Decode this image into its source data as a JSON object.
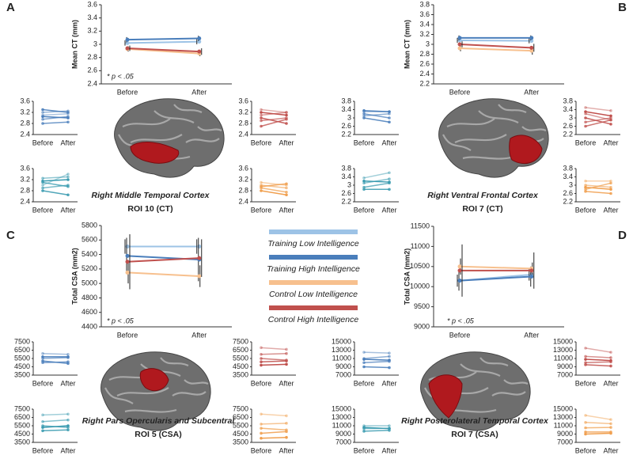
{
  "legend": [
    {
      "name": "Training Low Intelligence",
      "color": "#9dc3e6"
    },
    {
      "name": "Training High Intelligence",
      "color": "#4a7ebb"
    },
    {
      "name": "Control Low Intelligence",
      "color": "#f7c08e"
    },
    {
      "name": "Control High Intelligence",
      "color": "#c0504d"
    }
  ],
  "panels": [
    {
      "label": "A",
      "region": "Right Middle Temporal Cortex",
      "roi": "ROI 10 (CT)",
      "note": "* p < .05"
    },
    {
      "label": "B",
      "region": "Right Ventral Frontal Cortex",
      "roi": "ROI 7 (CT)"
    },
    {
      "label": "C",
      "region": "Right Pars Opercularis and Subcentral",
      "roi": "ROI 5 (CSA)",
      "note": "* p < .05"
    },
    {
      "label": "D",
      "region": "Right Posterolateral Temporal Cortex",
      "roi": "ROI 7 (CSA)",
      "note": "* p < .05"
    }
  ],
  "chart_data": [
    {
      "type": "line",
      "y_label": "Mean CT (mm)",
      "categories": [
        "Before",
        "After"
      ],
      "ylim": [
        2.4,
        3.6
      ],
      "yticks": [
        2.4,
        2.6,
        2.8,
        3,
        3.2,
        3.4,
        3.6
      ],
      "series": [
        {
          "name": "Training Low Intelligence",
          "color": "#9dc3e6",
          "values": [
            3.02,
            3.04
          ],
          "errors": [
            0.04,
            0.04
          ]
        },
        {
          "name": "Training High Intelligence",
          "color": "#4a7ebb",
          "values": [
            3.07,
            3.09
          ],
          "errors": [
            0.04,
            0.04
          ]
        },
        {
          "name": "Control Low Intelligence",
          "color": "#f7c08e",
          "values": [
            2.93,
            2.86
          ],
          "errors": [
            0.04,
            0.04
          ]
        },
        {
          "name": "Control High Intelligence",
          "color": "#c0504d",
          "values": [
            2.94,
            2.89
          ],
          "errors": [
            0.04,
            0.05
          ]
        }
      ]
    },
    {
      "type": "spaghetti",
      "categories": [
        "Before",
        "After"
      ],
      "ylim": [
        2.4,
        3.6
      ],
      "yticks": [
        2.4,
        2.8,
        3.2,
        3.6
      ],
      "color": "#4a7ebb",
      "series": [
        {
          "values": [
            3.1,
            3.15
          ]
        },
        {
          "values": [
            3.2,
            3.25
          ]
        },
        {
          "values": [
            2.95,
            3.05
          ]
        },
        {
          "values": [
            2.8,
            2.85
          ]
        },
        {
          "values": [
            3.3,
            3.2
          ]
        },
        {
          "values": [
            3.05,
            3.0
          ]
        }
      ]
    },
    {
      "type": "spaghetti",
      "categories": [
        "Before",
        "After"
      ],
      "ylim": [
        2.4,
        3.6
      ],
      "yticks": [
        2.4,
        2.8,
        3.2,
        3.6
      ],
      "color": "#3a9bb0",
      "series": [
        {
          "values": [
            3.0,
            3.4
          ]
        },
        {
          "values": [
            3.25,
            3.3
          ]
        },
        {
          "values": [
            2.9,
            3.0
          ]
        },
        {
          "values": [
            3.1,
            2.95
          ]
        },
        {
          "values": [
            2.8,
            2.65
          ]
        },
        {
          "values": [
            3.15,
            3.2
          ]
        }
      ]
    },
    {
      "type": "spaghetti",
      "categories": [
        "Before",
        "After"
      ],
      "ylim": [
        2.4,
        3.6
      ],
      "yticks": [
        2.4,
        2.8,
        3.2,
        3.6
      ],
      "color": "#c0504d",
      "series": [
        {
          "values": [
            3.3,
            3.2
          ]
        },
        {
          "values": [
            3.1,
            3.2
          ]
        },
        {
          "values": [
            2.9,
            3.0
          ]
        },
        {
          "values": [
            2.7,
            2.95
          ]
        },
        {
          "values": [
            3.0,
            2.8
          ]
        },
        {
          "values": [
            3.2,
            3.1
          ]
        }
      ]
    },
    {
      "type": "spaghetti",
      "categories": [
        "Before",
        "After"
      ],
      "ylim": [
        2.4,
        3.6
      ],
      "yticks": [
        2.4,
        2.8,
        3.2,
        3.6
      ],
      "color": "#f0a050",
      "series": [
        {
          "values": [
            3.1,
            3.0
          ]
        },
        {
          "values": [
            3.0,
            2.9
          ]
        },
        {
          "values": [
            2.9,
            2.75
          ]
        },
        {
          "values": [
            2.95,
            3.05
          ]
        },
        {
          "values": [
            2.8,
            2.65
          ]
        }
      ]
    },
    {
      "type": "line",
      "y_label": "Mean CT (mm)",
      "categories": [
        "Before",
        "After"
      ],
      "ylim": [
        2.2,
        3.8
      ],
      "yticks": [
        2.2,
        2.4,
        2.6,
        2.8,
        3,
        3.2,
        3.4,
        3.6,
        3.8
      ],
      "series": [
        {
          "name": "Training Low Intelligence",
          "color": "#9dc3e6",
          "values": [
            3.08,
            3.07
          ],
          "errors": [
            0.05,
            0.05
          ]
        },
        {
          "name": "Training High Intelligence",
          "color": "#4a7ebb",
          "values": [
            3.13,
            3.13
          ],
          "errors": [
            0.05,
            0.05
          ]
        },
        {
          "name": "Control Low Intelligence",
          "color": "#f7c08e",
          "values": [
            2.92,
            2.87
          ],
          "errors": [
            0.06,
            0.08
          ]
        },
        {
          "name": "Control High Intelligence",
          "color": "#c0504d",
          "values": [
            3.0,
            2.93
          ],
          "errors": [
            0.06,
            0.08
          ]
        }
      ]
    },
    {
      "type": "spaghetti",
      "categories": [
        "Before",
        "After"
      ],
      "ylim": [
        2.2,
        3.8
      ],
      "yticks": [
        2.2,
        2.6,
        3,
        3.4,
        3.8
      ],
      "color": "#4a7ebb",
      "series": [
        {
          "values": [
            3.3,
            3.3
          ]
        },
        {
          "values": [
            3.1,
            3.2
          ]
        },
        {
          "values": [
            3.2,
            3.0
          ]
        },
        {
          "values": [
            3.0,
            2.8
          ]
        },
        {
          "values": [
            3.35,
            3.3
          ]
        }
      ]
    },
    {
      "type": "spaghetti",
      "categories": [
        "Before",
        "After"
      ],
      "ylim": [
        2.2,
        3.8
      ],
      "yticks": [
        2.2,
        2.6,
        3,
        3.4,
        3.8
      ],
      "color": "#3a9bb0",
      "series": [
        {
          "values": [
            3.35,
            3.6
          ]
        },
        {
          "values": [
            3.1,
            3.3
          ]
        },
        {
          "values": [
            2.9,
            3.1
          ]
        },
        {
          "values": [
            2.8,
            2.8
          ]
        },
        {
          "values": [
            3.2,
            3.15
          ]
        }
      ]
    },
    {
      "type": "spaghetti",
      "categories": [
        "Before",
        "After"
      ],
      "ylim": [
        2.2,
        3.8
      ],
      "yticks": [
        2.2,
        2.6,
        3,
        3.4,
        3.8
      ],
      "color": "#c0504d",
      "series": [
        {
          "values": [
            3.5,
            3.35
          ]
        },
        {
          "values": [
            3.2,
            2.9
          ]
        },
        {
          "values": [
            2.8,
            3.0
          ]
        },
        {
          "values": [
            2.6,
            2.9
          ]
        },
        {
          "values": [
            3.0,
            2.7
          ]
        },
        {
          "values": [
            3.3,
            3.1
          ]
        }
      ]
    },
    {
      "type": "spaghetti",
      "categories": [
        "Before",
        "After"
      ],
      "ylim": [
        2.2,
        3.8
      ],
      "yticks": [
        2.2,
        2.6,
        3,
        3.4,
        3.8
      ],
      "color": "#f0a050",
      "series": [
        {
          "values": [
            3.2,
            3.2
          ]
        },
        {
          "values": [
            3.0,
            2.9
          ]
        },
        {
          "values": [
            2.8,
            3.1
          ]
        },
        {
          "values": [
            2.7,
            2.6
          ]
        },
        {
          "values": [
            2.9,
            2.8
          ]
        }
      ]
    },
    {
      "type": "line",
      "y_label": "Total CSA (mm2)",
      "categories": [
        "Before",
        "After"
      ],
      "ylim": [
        4400,
        5800
      ],
      "yticks": [
        4400,
        4600,
        4800,
        5000,
        5200,
        5400,
        5600,
        5800
      ],
      "series": [
        {
          "name": "Training Low Intelligence",
          "color": "#9dc3e6",
          "values": [
            5510,
            5510
          ],
          "errors": [
            100,
            100
          ]
        },
        {
          "name": "Training High Intelligence",
          "color": "#4a7ebb",
          "values": [
            5380,
            5330
          ],
          "errors": [
            250,
            300
          ]
        },
        {
          "name": "Control Low Intelligence",
          "color": "#f7c08e",
          "values": [
            5150,
            5100
          ],
          "errors": [
            150,
            150
          ]
        },
        {
          "name": "Control High Intelligence",
          "color": "#c0504d",
          "values": [
            5300,
            5350
          ],
          "errors": [
            380,
            260
          ]
        }
      ]
    },
    {
      "type": "spaghetti",
      "categories": [
        "Before",
        "After"
      ],
      "ylim": [
        3500,
        7500
      ],
      "yticks": [
        3500,
        4500,
        5500,
        6500,
        7500
      ],
      "color": "#4a7ebb",
      "series": [
        {
          "values": [
            6100,
            6000
          ]
        },
        {
          "values": [
            5500,
            5600
          ]
        },
        {
          "values": [
            5000,
            5100
          ]
        },
        {
          "values": [
            5200,
            4900
          ]
        },
        {
          "values": [
            5700,
            5700
          ]
        }
      ]
    },
    {
      "type": "spaghetti",
      "categories": [
        "Before",
        "After"
      ],
      "ylim": [
        3500,
        7500
      ],
      "yticks": [
        3500,
        4500,
        5500,
        6500,
        7500
      ],
      "color": "#3a9bb0",
      "series": [
        {
          "values": [
            6800,
            6900
          ]
        },
        {
          "values": [
            6000,
            6200
          ]
        },
        {
          "values": [
            5500,
            5300
          ]
        },
        {
          "values": [
            4900,
            5000
          ]
        },
        {
          "values": [
            5300,
            5500
          ]
        }
      ]
    },
    {
      "type": "spaghetti",
      "categories": [
        "Before",
        "After"
      ],
      "ylim": [
        3500,
        7500
      ],
      "yticks": [
        3500,
        4500,
        5500,
        6500,
        7500
      ],
      "color": "#c0504d",
      "series": [
        {
          "values": [
            6800,
            6600
          ]
        },
        {
          "values": [
            6000,
            6100
          ]
        },
        {
          "values": [
            5500,
            5300
          ]
        },
        {
          "values": [
            5100,
            5200
          ]
        },
        {
          "values": [
            4700,
            4800
          ]
        }
      ]
    },
    {
      "type": "spaghetti",
      "categories": [
        "Before",
        "After"
      ],
      "ylim": [
        3500,
        7500
      ],
      "yticks": [
        3500,
        4500,
        5500,
        6500,
        7500
      ],
      "color": "#f0a050",
      "series": [
        {
          "values": [
            6900,
            6700
          ]
        },
        {
          "values": [
            5700,
            5800
          ]
        },
        {
          "values": [
            5200,
            5000
          ]
        },
        {
          "values": [
            4600,
            4800
          ]
        },
        {
          "values": [
            4000,
            4100
          ]
        }
      ]
    },
    {
      "type": "line",
      "y_label": "Total CSA (mm2)",
      "categories": [
        "Before",
        "After"
      ],
      "ylim": [
        9000,
        11500
      ],
      "yticks": [
        9000,
        9500,
        10000,
        10500,
        11000,
        11500
      ],
      "series": [
        {
          "name": "Training Low Intelligence",
          "color": "#9dc3e6",
          "values": [
            10150,
            10300
          ],
          "errors": [
            150,
            150
          ]
        },
        {
          "name": "Training High Intelligence",
          "color": "#4a7ebb",
          "values": [
            10150,
            10250
          ],
          "errors": [
            250,
            250
          ]
        },
        {
          "name": "Control Low Intelligence",
          "color": "#f7c08e",
          "values": [
            10500,
            10450
          ],
          "errors": [
            200,
            150
          ]
        },
        {
          "name": "Control High Intelligence",
          "color": "#c0504d",
          "values": [
            10400,
            10400
          ],
          "errors": [
            650,
            450
          ]
        }
      ]
    },
    {
      "type": "spaghetti",
      "categories": [
        "Before",
        "After"
      ],
      "ylim": [
        7000,
        15000
      ],
      "yticks": [
        7000,
        9000,
        11000,
        13000,
        15000
      ],
      "color": "#4a7ebb",
      "series": [
        {
          "values": [
            12500,
            12300
          ]
        },
        {
          "values": [
            11000,
            11500
          ]
        },
        {
          "values": [
            10000,
            10300
          ]
        },
        {
          "values": [
            9000,
            8800
          ]
        },
        {
          "values": [
            10800,
            10600
          ]
        }
      ]
    },
    {
      "type": "spaghetti",
      "categories": [
        "Before",
        "After"
      ],
      "ylim": [
        7000,
        15000
      ],
      "yticks": [
        7000,
        9000,
        11000,
        13000,
        15000
      ],
      "color": "#3a9bb0",
      "series": [
        {
          "values": [
            11000,
            11000
          ]
        },
        {
          "values": [
            10300,
            10400
          ]
        },
        {
          "values": [
            9700,
            9900
          ]
        },
        {
          "values": [
            10600,
            10300
          ]
        }
      ]
    },
    {
      "type": "spaghetti",
      "categories": [
        "Before",
        "After"
      ],
      "ylim": [
        7000,
        15000
      ],
      "yticks": [
        7000,
        9000,
        11000,
        13000,
        15000
      ],
      "color": "#c0504d",
      "series": [
        {
          "values": [
            13500,
            12500
          ]
        },
        {
          "values": [
            11500,
            11200
          ]
        },
        {
          "values": [
            10000,
            10200
          ]
        },
        {
          "values": [
            9500,
            9200
          ]
        },
        {
          "values": [
            10800,
            10500
          ]
        }
      ]
    },
    {
      "type": "spaghetti",
      "categories": [
        "Before",
        "After"
      ],
      "ylim": [
        7000,
        15000
      ],
      "yticks": [
        7000,
        9000,
        11000,
        13000,
        15000
      ],
      "color": "#f0a050",
      "series": [
        {
          "values": [
            13500,
            12500
          ]
        },
        {
          "values": [
            11800,
            11500
          ]
        },
        {
          "values": [
            10500,
            10600
          ]
        },
        {
          "values": [
            9500,
            9500
          ]
        },
        {
          "values": [
            9000,
            9200
          ]
        }
      ]
    }
  ]
}
